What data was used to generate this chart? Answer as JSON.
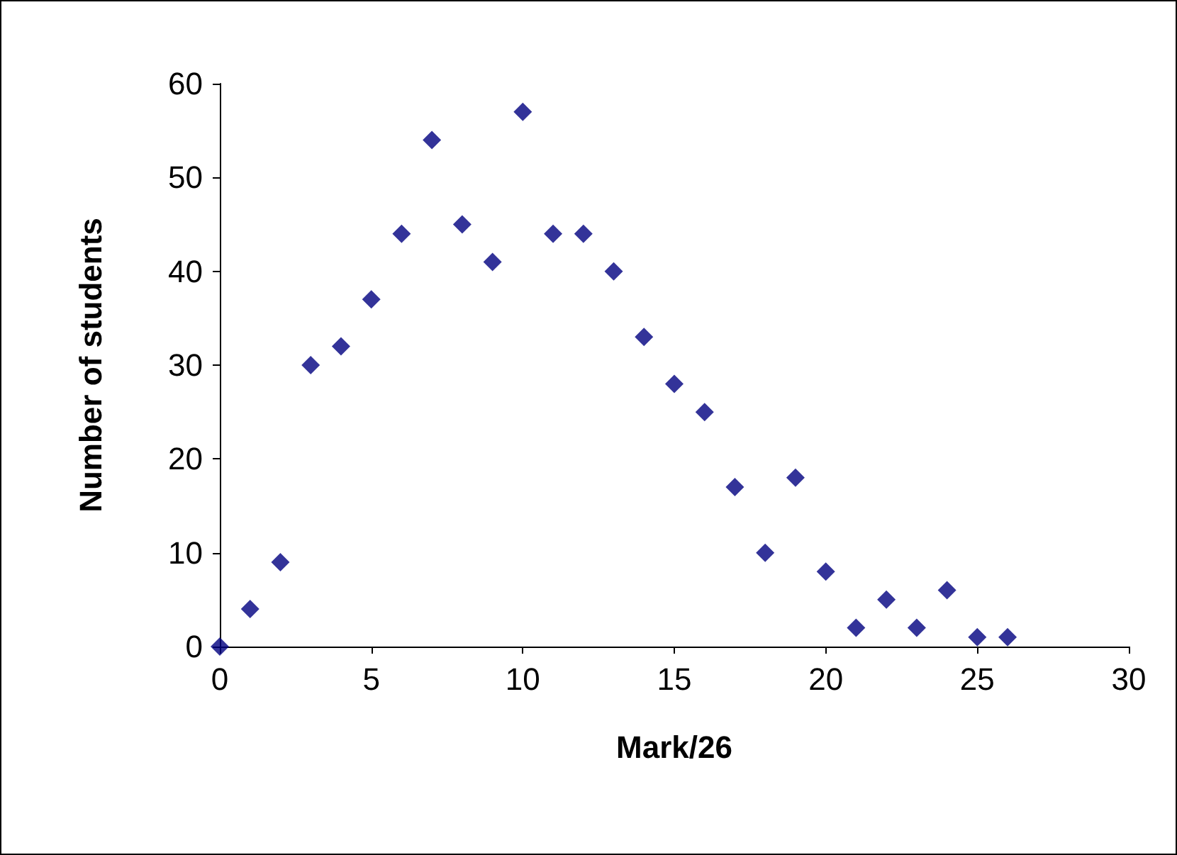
{
  "chart_data": {
    "type": "scatter",
    "xlabel": "Mark/26",
    "ylabel": "Number of students",
    "x": [
      0,
      1,
      2,
      3,
      4,
      5,
      6,
      7,
      8,
      9,
      10,
      11,
      12,
      13,
      14,
      15,
      16,
      17,
      18,
      19,
      20,
      21,
      22,
      23,
      24,
      25,
      26
    ],
    "series": [
      {
        "color": "#000080",
        "values": [
          0,
          4,
          9,
          30,
          32,
          37,
          44,
          54,
          45,
          41,
          57,
          44,
          44,
          40,
          33,
          28,
          25,
          17,
          10,
          18,
          8,
          2,
          5,
          2,
          6,
          1,
          1
        ]
      }
    ],
    "xlim": [
      0,
      30
    ],
    "xticks": [
      0,
      5,
      10,
      15,
      20,
      25,
      30
    ],
    "ylim": [
      0,
      60
    ],
    "yticks": [
      0,
      10,
      20,
      30,
      40,
      50,
      60
    ],
    "marker": "diamond"
  }
}
